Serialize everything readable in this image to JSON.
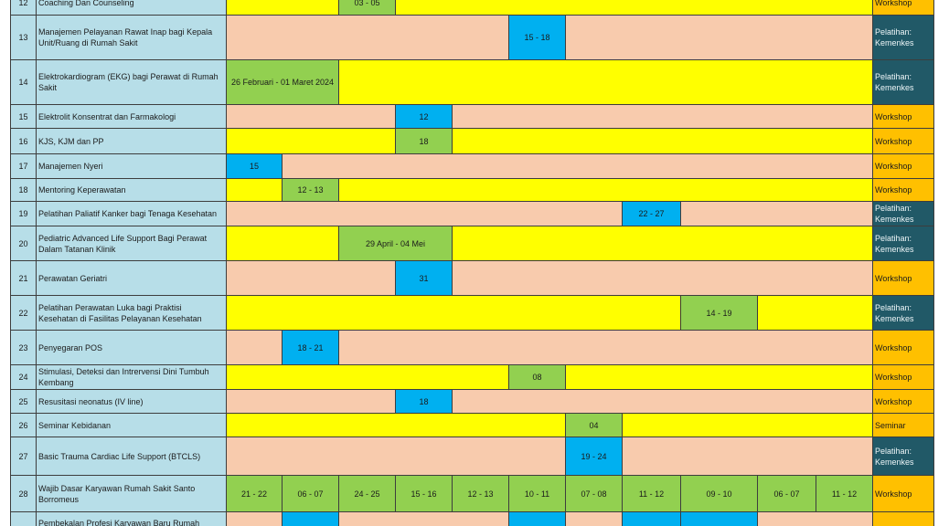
{
  "colors": {
    "index_cell": "#b7dee8",
    "peach": "#f8cbad",
    "yellow": "#ffff00",
    "green": "#92d050",
    "blue": "#00b0f0",
    "teal": "#215967",
    "orange": "#ffc000"
  },
  "schedule": {
    "rows": [
      {
        "no": "12",
        "name": "Coaching Dan Counseling",
        "bg": "yellow",
        "events": [
          {
            "month_slots": [
              3
            ],
            "label": "03 - 05",
            "tone": "green"
          }
        ],
        "category": {
          "label": "Workshop",
          "tone": "orange"
        }
      },
      {
        "no": "13",
        "name": "Manajemen Pelayanan Rawat Inap bagi Kepala Unit/Ruang di Rumah Sakit",
        "bg": "peach",
        "events": [
          {
            "month_slots": [
              6
            ],
            "label": "15 - 18",
            "tone": "blue"
          }
        ],
        "category": {
          "label": "Pelatihan: Kemenkes",
          "tone": "teal"
        }
      },
      {
        "no": "14",
        "name": "Elektrokardiogram (EKG) bagi Perawat di Rumah Sakit",
        "bg": "yellow",
        "events": [
          {
            "month_slots": [
              1,
              2
            ],
            "label": "26 Februari - 01 Maret 2024",
            "tone": "green"
          }
        ],
        "category": {
          "label": "Pelatihan: Kemenkes",
          "tone": "teal"
        }
      },
      {
        "no": "15",
        "name": "Elektrolit Konsentrat dan Farmakologi",
        "bg": "peach",
        "events": [
          {
            "month_slots": [
              4
            ],
            "label": "12",
            "tone": "blue"
          }
        ],
        "category": {
          "label": "Workshop",
          "tone": "orange"
        }
      },
      {
        "no": "16",
        "name": "KJS, KJM dan PP",
        "bg": "yellow",
        "events": [
          {
            "month_slots": [
              4
            ],
            "label": "18",
            "tone": "green"
          }
        ],
        "category": {
          "label": "Workshop",
          "tone": "orange"
        }
      },
      {
        "no": "17",
        "name": "Manajemen Nyeri",
        "bg": "peach",
        "events": [
          {
            "month_slots": [
              1
            ],
            "label": "15",
            "tone": "blue"
          }
        ],
        "category": {
          "label": "Workshop",
          "tone": "orange"
        }
      },
      {
        "no": "18",
        "name": "Mentoring Keperawatan",
        "bg": "yellow",
        "events": [
          {
            "month_slots": [
              2
            ],
            "label": "12 - 13",
            "tone": "green"
          }
        ],
        "category": {
          "label": "Workshop",
          "tone": "orange"
        }
      },
      {
        "no": "19",
        "name": "Pelatihan Paliatif Kanker bagi Tenaga Kesehatan",
        "bg": "peach",
        "events": [
          {
            "month_slots": [
              8
            ],
            "label": "22 - 27",
            "tone": "blue"
          }
        ],
        "category": {
          "label": "Pelatihan: Kemenkes",
          "tone": "teal"
        }
      },
      {
        "no": "20",
        "name": "Pediatric Advanced Life Support Bagi Perawat Dalam Tatanan Klinik",
        "bg": "yellow",
        "events": [
          {
            "month_slots": [
              3,
              4
            ],
            "label": "29 April - 04 Mei",
            "tone": "green"
          }
        ],
        "category": {
          "label": "Pelatihan: Kemenkes",
          "tone": "teal"
        }
      },
      {
        "no": "21",
        "name": "Perawatan Geriatri",
        "bg": "peach",
        "events": [
          {
            "month_slots": [
              4
            ],
            "label": "31",
            "tone": "blue"
          }
        ],
        "category": {
          "label": "Workshop",
          "tone": "orange"
        }
      },
      {
        "no": "22",
        "name": "Pelatihan Perawatan Luka bagi Praktisi Kesehatan di Fasilitas Pelayanan Kesehatan",
        "bg": "yellow",
        "events": [
          {
            "month_slots": [
              9
            ],
            "label": "14 - 19",
            "tone": "green"
          }
        ],
        "category": {
          "label": "Pelatihan: Kemenkes",
          "tone": "teal"
        }
      },
      {
        "no": "23",
        "name": "Penyegaran POS",
        "bg": "peach",
        "events": [
          {
            "month_slots": [
              2
            ],
            "label": "18 - 21",
            "tone": "blue"
          }
        ],
        "category": {
          "label": "Workshop",
          "tone": "orange"
        }
      },
      {
        "no": "24",
        "name": "Stimulasi, Deteksi dan Intrervensi Dini Tumbuh Kembang",
        "bg": "yellow",
        "events": [
          {
            "month_slots": [
              6
            ],
            "label": "08",
            "tone": "green"
          }
        ],
        "category": {
          "label": "Workshop",
          "tone": "orange"
        }
      },
      {
        "no": "25",
        "name": "Resusitasi neonatus (IV line)",
        "bg": "peach",
        "events": [
          {
            "month_slots": [
              4
            ],
            "label": "18",
            "tone": "blue"
          }
        ],
        "category": {
          "label": "Workshop",
          "tone": "orange"
        }
      },
      {
        "no": "26",
        "name": "Seminar Kebidanan",
        "bg": "yellow",
        "events": [
          {
            "month_slots": [
              7
            ],
            "label": "04",
            "tone": "green"
          }
        ],
        "category": {
          "label": "Seminar",
          "tone": "orange"
        }
      },
      {
        "no": "27",
        "name": "Basic Trauma Cardiac Life Support (BTCLS)",
        "bg": "peach",
        "events": [
          {
            "month_slots": [
              7
            ],
            "label": "19 - 24",
            "tone": "blue"
          }
        ],
        "category": {
          "label": "Pelatihan: Kemenkes",
          "tone": "teal"
        }
      },
      {
        "no": "28",
        "name": "Wajib Dasar Karyawan Rumah Sakit Santo Borromeus",
        "bg": "yellow",
        "events": [
          {
            "month_slots": [
              1
            ],
            "label": "21 - 22",
            "tone": "green"
          },
          {
            "month_slots": [
              2
            ],
            "label": "06 - 07",
            "tone": "green"
          },
          {
            "month_slots": [
              3
            ],
            "label": "24 - 25",
            "tone": "green"
          },
          {
            "month_slots": [
              4
            ],
            "label": "15 - 16",
            "tone": "green"
          },
          {
            "month_slots": [
              5
            ],
            "label": "12 - 13",
            "tone": "green"
          },
          {
            "month_slots": [
              6
            ],
            "label": "10 - 11",
            "tone": "green"
          },
          {
            "month_slots": [
              7
            ],
            "label": "07 - 08",
            "tone": "green"
          },
          {
            "month_slots": [
              8
            ],
            "label": "11 - 12",
            "tone": "green"
          },
          {
            "month_slots": [
              9
            ],
            "label": "09 - 10",
            "tone": "green"
          },
          {
            "month_slots": [
              10
            ],
            "label": "06 - 07",
            "tone": "green"
          },
          {
            "month_slots": [
              11
            ],
            "label": "11 - 12",
            "tone": "green"
          }
        ],
        "category": {
          "label": "Workshop",
          "tone": "orange"
        }
      },
      {
        "name": "Pembekalan Profesi Karyawan Baru Rumah",
        "bg": "peach",
        "events": [
          {
            "month_slots": [
              2
            ],
            "tone": "blue"
          },
          {
            "month_slots": [
              6
            ],
            "tone": "blue"
          },
          {
            "month_slots": [
              8
            ],
            "tone": "blue"
          },
          {
            "month_slots": [
              9
            ],
            "tone": "blue"
          }
        ],
        "category": {
          "tone": "orange"
        }
      }
    ]
  }
}
